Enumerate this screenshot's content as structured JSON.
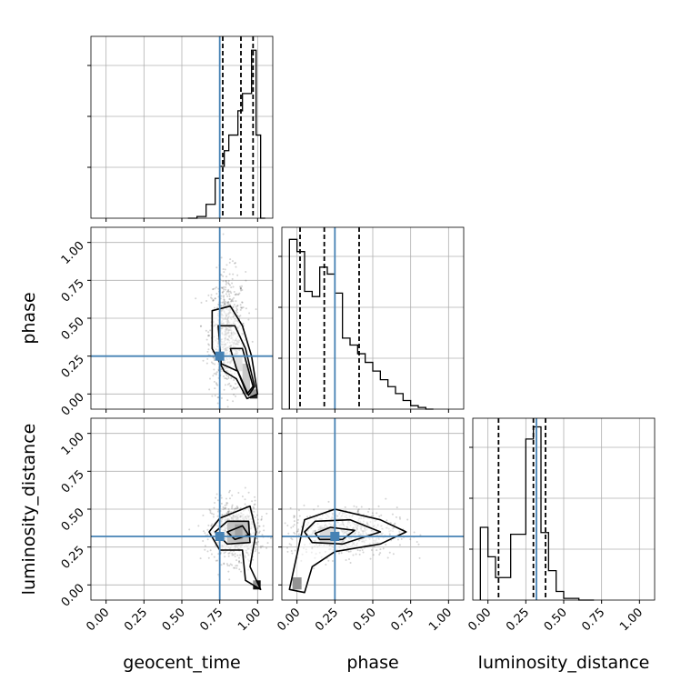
{
  "chart_data": {
    "type": "corner",
    "parameters": [
      "geocent_time",
      "phase",
      "luminosity_distance"
    ],
    "xlabels": [
      "geocent_time",
      "phase",
      "luminosity_distance"
    ],
    "ylabels": [
      "",
      "phase",
      "luminosity_distance"
    ],
    "tick_values": [
      0.0,
      0.25,
      0.5,
      0.75,
      1.0
    ],
    "tick_labels": [
      "0.00",
      "0.25",
      "0.50",
      "0.75",
      "1.00"
    ],
    "axis_range": [
      -0.1,
      1.1
    ],
    "grid": true,
    "truths": {
      "geocent_time": 0.75,
      "phase": 0.25,
      "luminosity_distance": 0.32
    },
    "truth_color": "#4682b4",
    "quantiles": {
      "geocent_time": [
        0.77,
        0.89,
        0.97
      ],
      "phase": [
        0.02,
        0.18,
        0.41
      ],
      "luminosity_distance": [
        0.07,
        0.3,
        0.38
      ]
    },
    "histograms": {
      "geocent_time": {
        "edges": [
          0.54,
          0.6,
          0.66,
          0.72,
          0.75,
          0.78,
          0.81,
          0.84,
          0.87,
          0.9,
          0.93,
          0.96,
          0.99,
          1.02,
          1.05
        ],
        "counts": [
          0,
          0.01,
          0.08,
          0.23,
          0.3,
          0.39,
          0.48,
          0.48,
          0.62,
          0.72,
          0.72,
          0.97,
          0.48,
          0
        ],
        "ymax": 1.05
      },
      "phase": {
        "edges": [
          -0.05,
          0.0,
          0.05,
          0.1,
          0.15,
          0.2,
          0.25,
          0.3,
          0.35,
          0.4,
          0.45,
          0.5,
          0.55,
          0.6,
          0.65,
          0.7,
          0.75,
          0.8,
          0.85,
          0.9
        ],
        "counts": [
          0.98,
          0.91,
          0.68,
          0.65,
          0.82,
          0.78,
          0.67,
          0.41,
          0.37,
          0.32,
          0.27,
          0.22,
          0.17,
          0.13,
          0.09,
          0.05,
          0.02,
          0.01,
          0
        ],
        "ymax": 1.05
      },
      "luminosity_distance": {
        "edges": [
          -0.05,
          0.0,
          0.05,
          0.1,
          0.15,
          0.2,
          0.25,
          0.3,
          0.35,
          0.4,
          0.45,
          0.5,
          0.55,
          0.6,
          0.65,
          0.7
        ],
        "counts": [
          0.42,
          0.25,
          0.13,
          0.13,
          0.38,
          0.38,
          0.93,
          1.0,
          0.39,
          0.17,
          0.05,
          0.01,
          0.01,
          0,
          0
        ],
        "ymax": 1.05
      }
    },
    "density_panels": [
      {
        "x": "geocent_time",
        "y": "phase",
        "scatter_center": [
          0.8,
          0.4
        ],
        "scatter_spread": [
          0.06,
          0.2
        ],
        "cells": [
          {
            "x0": 0.85,
            "x1": 0.9,
            "y0": 0.15,
            "y1": 0.25,
            "shade": "#bfbfbf"
          },
          {
            "x0": 0.9,
            "x1": 0.95,
            "y0": 0.0,
            "y1": 0.2,
            "shade": "#888888"
          },
          {
            "x0": 0.95,
            "x1": 1.0,
            "y0": -0.03,
            "y1": 0.03,
            "shade": "#222222"
          }
        ],
        "contours": [
          [
            [
              0.7,
              0.55
            ],
            [
              0.82,
              0.58
            ],
            [
              0.9,
              0.45
            ],
            [
              0.96,
              0.25
            ],
            [
              1.0,
              0.0
            ],
            [
              0.93,
              -0.03
            ],
            [
              0.86,
              0.1
            ],
            [
              0.78,
              0.15
            ],
            [
              0.7,
              0.3
            ],
            [
              0.7,
              0.55
            ]
          ],
          [
            [
              0.74,
              0.45
            ],
            [
              0.85,
              0.45
            ],
            [
              0.92,
              0.3
            ],
            [
              0.98,
              0.05
            ],
            [
              0.94,
              -0.01
            ],
            [
              0.87,
              0.15
            ],
            [
              0.76,
              0.2
            ],
            [
              0.74,
              0.45
            ]
          ],
          [
            [
              0.82,
              0.3
            ],
            [
              0.9,
              0.3
            ],
            [
              0.97,
              0.05
            ],
            [
              0.93,
              0.0
            ],
            [
              0.86,
              0.17
            ],
            [
              0.82,
              0.3
            ]
          ]
        ]
      },
      {
        "x": "geocent_time",
        "y": "luminosity_distance",
        "scatter_center": [
          0.85,
          0.35
        ],
        "scatter_spread": [
          0.08,
          0.1
        ],
        "cells": [
          {
            "x0": 0.8,
            "x1": 0.95,
            "y0": 0.28,
            "y1": 0.42,
            "shade": "#777777"
          },
          {
            "x0": 0.85,
            "x1": 0.9,
            "y0": 0.3,
            "y1": 0.4,
            "shade": "#333333"
          },
          {
            "x0": 0.97,
            "x1": 1.02,
            "y0": -0.03,
            "y1": 0.03,
            "shade": "#111111"
          }
        ],
        "contours": [
          [
            [
              0.68,
              0.35
            ],
            [
              0.75,
              0.44
            ],
            [
              0.95,
              0.52
            ],
            [
              0.99,
              0.35
            ],
            [
              0.95,
              0.12
            ],
            [
              1.02,
              -0.03
            ],
            [
              0.92,
              0.03
            ],
            [
              0.9,
              0.23
            ],
            [
              0.75,
              0.23
            ],
            [
              0.68,
              0.35
            ]
          ],
          [
            [
              0.72,
              0.35
            ],
            [
              0.8,
              0.42
            ],
            [
              0.94,
              0.42
            ],
            [
              0.95,
              0.28
            ],
            [
              0.8,
              0.27
            ],
            [
              0.72,
              0.35
            ]
          ],
          [
            [
              0.8,
              0.35
            ],
            [
              0.9,
              0.39
            ],
            [
              0.94,
              0.33
            ],
            [
              0.85,
              0.3
            ],
            [
              0.8,
              0.35
            ]
          ]
        ]
      },
      {
        "x": "phase",
        "y": "luminosity_distance",
        "scatter_center": [
          0.3,
          0.35
        ],
        "scatter_spread": [
          0.18,
          0.08
        ],
        "cells": [
          {
            "x0": 0.15,
            "x1": 0.25,
            "y0": 0.28,
            "y1": 0.38,
            "shade": "#aaaaaa"
          },
          {
            "x0": -0.03,
            "x1": 0.03,
            "y0": -0.03,
            "y1": 0.05,
            "shade": "#111111"
          }
        ],
        "contours": [
          [
            [
              0.0,
              0.2
            ],
            [
              0.05,
              0.43
            ],
            [
              0.25,
              0.5
            ],
            [
              0.55,
              0.43
            ],
            [
              0.72,
              0.35
            ],
            [
              0.55,
              0.27
            ],
            [
              0.25,
              0.22
            ],
            [
              0.1,
              0.12
            ],
            [
              0.05,
              -0.05
            ],
            [
              -0.05,
              -0.03
            ],
            [
              0.0,
              0.2
            ]
          ],
          [
            [
              0.05,
              0.35
            ],
            [
              0.12,
              0.42
            ],
            [
              0.35,
              0.43
            ],
            [
              0.55,
              0.35
            ],
            [
              0.3,
              0.27
            ],
            [
              0.1,
              0.28
            ],
            [
              0.05,
              0.35
            ]
          ],
          [
            [
              0.12,
              0.34
            ],
            [
              0.22,
              0.38
            ],
            [
              0.38,
              0.36
            ],
            [
              0.3,
              0.3
            ],
            [
              0.15,
              0.3
            ],
            [
              0.12,
              0.34
            ]
          ]
        ]
      }
    ]
  }
}
